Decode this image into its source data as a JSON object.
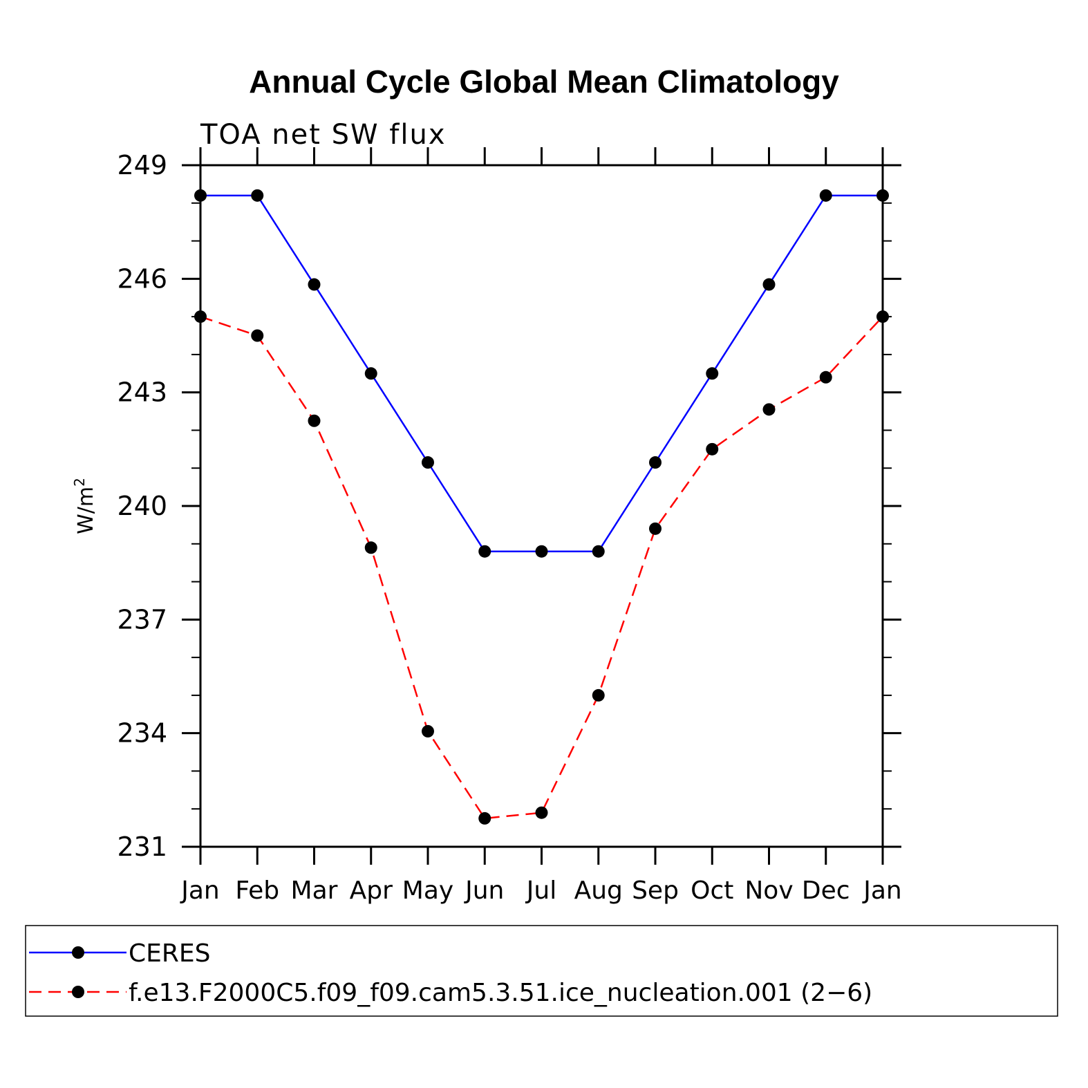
{
  "chart_data": {
    "type": "line",
    "title": "Annual Cycle Global Mean Climatology",
    "subtitle": "TOA net SW flux",
    "ylabel": "W/m",
    "ylabel_superscript": "2",
    "xlabel": "",
    "ylim": [
      231,
      249
    ],
    "yticks": [
      249,
      246,
      243,
      240,
      237,
      234,
      231
    ],
    "categories": [
      "Jan",
      "Feb",
      "Mar",
      "Apr",
      "May",
      "Jun",
      "Jul",
      "Aug",
      "Sep",
      "Oct",
      "Nov",
      "Dec",
      "Jan"
    ],
    "grid": false,
    "legend_position": "bottom",
    "series": [
      {
        "name": "CERES",
        "color": "#0000ff",
        "dash": "solid",
        "values": [
          248.2,
          248.2,
          245.85,
          243.5,
          241.15,
          238.8,
          238.8,
          238.8,
          241.15,
          243.5,
          245.85,
          248.2,
          248.2
        ]
      },
      {
        "name": "f.e13.F2000C5.f09_f09.cam5.3.51.ice_nucleation.001 (2−6)",
        "color": "#ff0000",
        "dash": "dashed",
        "values": [
          245.0,
          244.5,
          242.25,
          238.9,
          234.05,
          231.75,
          231.9,
          235.0,
          239.4,
          241.5,
          242.55,
          243.4,
          245.0
        ]
      }
    ]
  }
}
